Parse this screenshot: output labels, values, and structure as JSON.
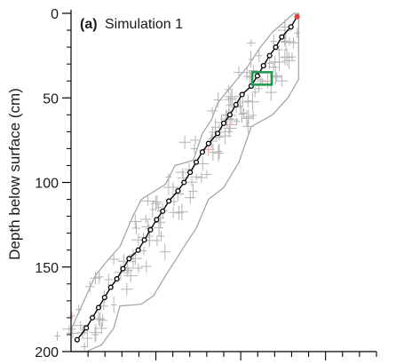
{
  "chart_data": {
    "type": "scatter",
    "panel_label": "(a)",
    "title": "Simulation 1",
    "ylabel": "Depth below surface (cm)",
    "xlabel": "",
    "y_axis_inverted": true,
    "ylim": [
      0,
      200
    ],
    "y_ticks": [
      0,
      50,
      100,
      150,
      200
    ],
    "x_tick_labels_visible": false,
    "grid": false,
    "series": [
      {
        "marker": "open-circle",
        "line": "solid",
        "color": "#000000",
        "points": [
          {
            "x": 0.02,
            "y": 193
          },
          {
            "x": 0.05,
            "y": 186
          },
          {
            "x": 0.07,
            "y": 180
          },
          {
            "x": 0.09,
            "y": 174
          },
          {
            "x": 0.11,
            "y": 168
          },
          {
            "x": 0.13,
            "y": 162
          },
          {
            "x": 0.15,
            "y": 157
          },
          {
            "x": 0.17,
            "y": 151
          },
          {
            "x": 0.19,
            "y": 145
          },
          {
            "x": 0.22,
            "y": 140
          },
          {
            "x": 0.24,
            "y": 134
          },
          {
            "x": 0.26,
            "y": 128
          },
          {
            "x": 0.28,
            "y": 122
          },
          {
            "x": 0.3,
            "y": 117
          },
          {
            "x": 0.32,
            "y": 111
          },
          {
            "x": 0.35,
            "y": 105
          },
          {
            "x": 0.37,
            "y": 100
          },
          {
            "x": 0.39,
            "y": 94
          },
          {
            "x": 0.41,
            "y": 88
          },
          {
            "x": 0.43,
            "y": 82
          },
          {
            "x": 0.45,
            "y": 77
          },
          {
            "x": 0.48,
            "y": 71
          },
          {
            "x": 0.5,
            "y": 65
          },
          {
            "x": 0.52,
            "y": 60
          },
          {
            "x": 0.54,
            "y": 54
          },
          {
            "x": 0.56,
            "y": 48
          },
          {
            "x": 0.59,
            "y": 43
          },
          {
            "x": 0.61,
            "y": 37
          },
          {
            "x": 0.63,
            "y": 31
          },
          {
            "x": 0.65,
            "y": 25
          },
          {
            "x": 0.67,
            "y": 20
          },
          {
            "x": 0.69,
            "y": 14
          },
          {
            "x": 0.72,
            "y": 8
          }
        ],
        "endpoint": {
          "x": 0.74,
          "y": 2,
          "color": "#e0403a"
        }
      }
    ],
    "envelope": {
      "color": "#a0a0a0",
      "upper": [
        [
          0.0,
          187
        ],
        [
          0.08,
          155
        ],
        [
          0.12,
          146
        ],
        [
          0.16,
          138
        ],
        [
          0.2,
          121
        ],
        [
          0.23,
          110
        ],
        [
          0.31,
          101
        ],
        [
          0.34,
          90
        ],
        [
          0.4,
          87
        ],
        [
          0.43,
          71
        ],
        [
          0.46,
          63
        ],
        [
          0.48,
          53
        ],
        [
          0.53,
          42
        ],
        [
          0.58,
          31
        ],
        [
          0.62,
          20
        ],
        [
          0.66,
          11
        ],
        [
          0.68,
          8
        ],
        [
          0.73,
          0
        ],
        [
          0.745,
          0
        ]
      ],
      "lower": [
        [
          0.745,
          0
        ],
        [
          0.745,
          39
        ],
        [
          0.71,
          50
        ],
        [
          0.66,
          60
        ],
        [
          0.59,
          67
        ],
        [
          0.55,
          88
        ],
        [
          0.5,
          103
        ],
        [
          0.45,
          110
        ],
        [
          0.41,
          127
        ],
        [
          0.37,
          138
        ],
        [
          0.31,
          155
        ],
        [
          0.27,
          167
        ],
        [
          0.23,
          172
        ],
        [
          0.16,
          173
        ],
        [
          0.14,
          186
        ],
        [
          0.1,
          196
        ],
        [
          0.05,
          200
        ],
        [
          0.0,
          200
        ]
      ]
    },
    "sample_marks": {
      "count": 150,
      "color": "#b3b3b3",
      "highlight_color": "#e8a0a0"
    },
    "highlight_box": {
      "x": 0.625,
      "y": 38.5,
      "color": "#1f9a4e"
    }
  }
}
